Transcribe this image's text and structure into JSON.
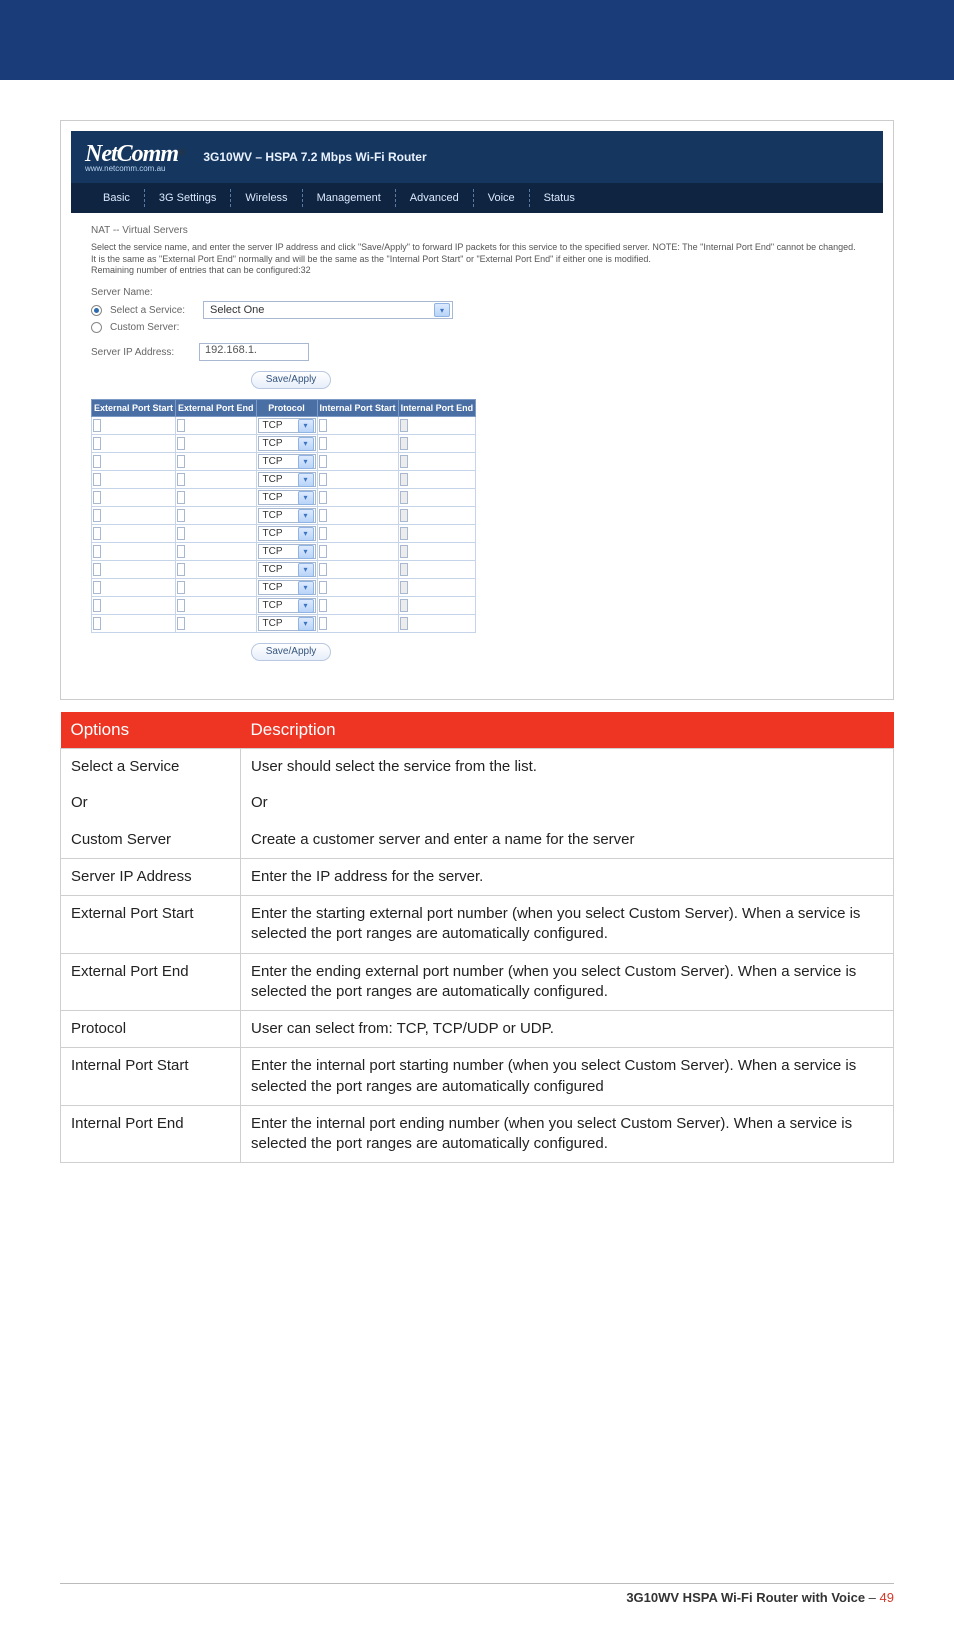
{
  "brand": {
    "name": "NetComm",
    "url": "www.netcomm.com.au",
    "registered": "®"
  },
  "router_title": "3G10WV – HSPA 7.2 Mbps Wi-Fi Router",
  "nav": [
    "Basic",
    "3G Settings",
    "Wireless",
    "Management",
    "Advanced",
    "Voice",
    "Status"
  ],
  "page_crumb": "NAT -- Virtual Servers",
  "explain_text": "Select the service name, and enter the server IP address and click \"Save/Apply\" to forward IP packets for this service to the specified server. NOTE: The \"Internal Port End\" cannot be changed. It is the same as \"External Port End\" normally and will be the same as the \"Internal Port Start\" or \"External Port End\" if either one is modified.",
  "remaining_text": "Remaining number of entries that can be configured:32",
  "server_name_label": "Server Name:",
  "select_service_label": "Select a Service:",
  "select_service_value": "Select One",
  "custom_server_label": "Custom Server:",
  "server_ip_label": "Server IP Address:",
  "server_ip_value": "192.168.1.",
  "btn_save": "Save/Apply",
  "port_headers": [
    "External Port Start",
    "External Port End",
    "Protocol",
    "Internal Port Start",
    "Internal Port End"
  ],
  "port_rows": 12,
  "protocol_value": "TCP",
  "desc_headers": {
    "opt": "Options",
    "desc": "Description"
  },
  "desc_rows": [
    {
      "opt": "Select a Service",
      "desc": "User should select the service from the list."
    },
    {
      "opt": "Or",
      "desc": "Or"
    },
    {
      "opt": "Custom Server",
      "desc": "Create a customer server and enter a name for the server"
    },
    {
      "opt": "Server IP Address",
      "desc": "Enter the IP address for the server."
    },
    {
      "opt": "External Port Start",
      "desc": "Enter the starting external port number (when you select Custom Server). When a service is selected the port ranges are automatically configured."
    },
    {
      "opt": "External Port End",
      "desc": "Enter the ending external port number (when you select Custom Server). When a service is selected the port ranges are automatically configured."
    },
    {
      "opt": "Protocol",
      "desc": "User can select from: TCP, TCP/UDP or UDP."
    },
    {
      "opt": "Internal Port Start",
      "desc": "Enter the internal port starting number (when you select Custom Server). When a service is selected the port ranges are automatically configured"
    },
    {
      "opt": "Internal Port End",
      "desc": "Enter the internal port ending number (when you select Custom Server). When a service is selected the port ranges are automatically configured."
    }
  ],
  "footer": {
    "title": "3G10WV HSPA Wi-Fi Router with Voice",
    "sep": " – ",
    "page": "49"
  }
}
